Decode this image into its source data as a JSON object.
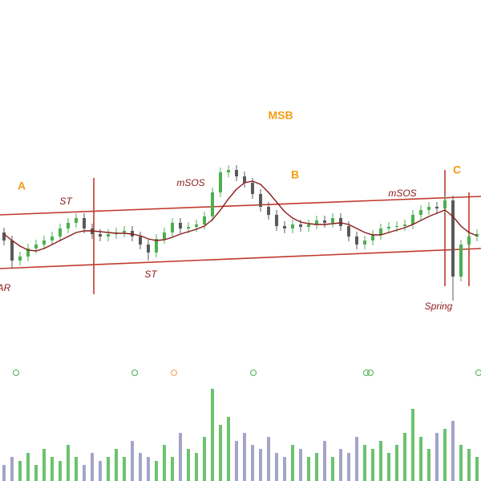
{
  "chart_data": {
    "type": "candlestick",
    "xlim": [
      -0.5,
      59.5
    ],
    "ylim": [
      0,
      440
    ],
    "volume_ylim": [
      0,
      140
    ],
    "up_color": "#4caf50",
    "down_color": "#5a5a5a",
    "volume_up_color": "#6cc36c",
    "volume_down_color": "#a4a4c8",
    "ma_color": "#8b1a1a",
    "channel_color": "#c0392b",
    "open": [
      150,
      140,
      115,
      120,
      130,
      135,
      140,
      145,
      155,
      162,
      168,
      155,
      148,
      145,
      148,
      150,
      152,
      145,
      135,
      125,
      142,
      150,
      162,
      155,
      157,
      160,
      170,
      200,
      225,
      228,
      220,
      212,
      198,
      182,
      172,
      158,
      155,
      160,
      157,
      160,
      165,
      162,
      168,
      158,
      145,
      135,
      140,
      147,
      155,
      157,
      158,
      160,
      172,
      178,
      182,
      180,
      190,
      95,
      135,
      145
    ],
    "high": [
      156,
      146,
      126,
      136,
      141,
      146,
      151,
      161,
      168,
      174,
      174,
      161,
      154,
      154,
      156,
      158,
      158,
      151,
      141,
      148,
      156,
      168,
      168,
      163,
      166,
      176,
      206,
      231,
      234,
      234,
      226,
      218,
      204,
      188,
      178,
      164,
      166,
      166,
      166,
      171,
      171,
      174,
      174,
      164,
      151,
      146,
      153,
      161,
      163,
      164,
      166,
      178,
      184,
      188,
      188,
      196,
      196,
      141,
      151,
      154
    ],
    "low": [
      134,
      105,
      109,
      114,
      124,
      129,
      134,
      139,
      149,
      156,
      149,
      142,
      139,
      139,
      142,
      144,
      139,
      129,
      115,
      119,
      136,
      144,
      149,
      149,
      151,
      154,
      164,
      194,
      219,
      214,
      206,
      192,
      176,
      166,
      152,
      149,
      149,
      151,
      151,
      154,
      156,
      156,
      152,
      139,
      129,
      129,
      134,
      141,
      149,
      151,
      152,
      154,
      166,
      172,
      174,
      174,
      65,
      89,
      129,
      139
    ],
    "close": [
      140,
      115,
      120,
      130,
      135,
      140,
      145,
      155,
      162,
      168,
      155,
      148,
      145,
      148,
      150,
      152,
      145,
      135,
      125,
      142,
      150,
      162,
      155,
      157,
      160,
      170,
      200,
      225,
      228,
      220,
      212,
      198,
      182,
      172,
      158,
      155,
      160,
      157,
      160,
      165,
      162,
      168,
      158,
      145,
      135,
      140,
      147,
      155,
      157,
      158,
      160,
      172,
      178,
      182,
      180,
      190,
      95,
      135,
      145,
      148
    ],
    "ma": [
      148,
      140,
      133,
      128,
      127,
      130,
      135,
      140,
      145,
      150,
      152,
      152,
      151,
      150,
      149,
      149,
      148,
      146,
      142,
      140,
      141,
      144,
      148,
      151,
      154,
      158,
      166,
      178,
      192,
      204,
      212,
      214,
      210,
      200,
      188,
      176,
      168,
      163,
      161,
      160,
      160,
      161,
      162,
      160,
      155,
      150,
      147,
      147,
      150,
      153,
      156,
      160,
      165,
      170,
      174,
      178,
      170,
      158,
      150,
      146
    ],
    "volume": [
      20,
      30,
      25,
      35,
      20,
      40,
      30,
      25,
      45,
      30,
      20,
      35,
      25,
      30,
      40,
      30,
      50,
      35,
      30,
      25,
      45,
      30,
      60,
      40,
      35,
      55,
      115,
      70,
      80,
      50,
      60,
      45,
      40,
      55,
      35,
      30,
      45,
      40,
      30,
      35,
      50,
      30,
      40,
      35,
      55,
      45,
      40,
      50,
      35,
      45,
      60,
      90,
      55,
      40,
      60,
      65,
      75,
      45,
      40,
      30
    ],
    "channel": [
      {
        "x": [
          -0.5,
          59.5
        ],
        "y": [
          172,
          195
        ]
      },
      {
        "x": [
          -0.5,
          59.5
        ],
        "y": [
          105,
          130
        ]
      }
    ],
    "verticals": [
      {
        "x": 11.2,
        "y": [
          218,
          73
        ]
      },
      {
        "x": 55,
        "y": [
          228,
          83
        ]
      },
      {
        "x": 58,
        "y": [
          200,
          83
        ]
      }
    ],
    "phase_labels": [
      {
        "text": "A",
        "x": 2.2,
        "y": 207
      },
      {
        "text": "MSB",
        "x": 34.5,
        "y": 295
      },
      {
        "text": "B",
        "x": 36.3,
        "y": 221
      },
      {
        "text": "C",
        "x": 56.5,
        "y": 227
      }
    ],
    "event_labels": [
      {
        "text": "AR",
        "x": 0,
        "y": 80
      },
      {
        "text": "ST",
        "x": 7.7,
        "y": 188
      },
      {
        "text": "ST",
        "x": 18.3,
        "y": 97
      },
      {
        "text": "mSOS",
        "x": 23.3,
        "y": 211
      },
      {
        "text": "mSOS",
        "x": 49.7,
        "y": 198
      },
      {
        "text": "Spring",
        "x": 54.2,
        "y": 57
      }
    ]
  }
}
